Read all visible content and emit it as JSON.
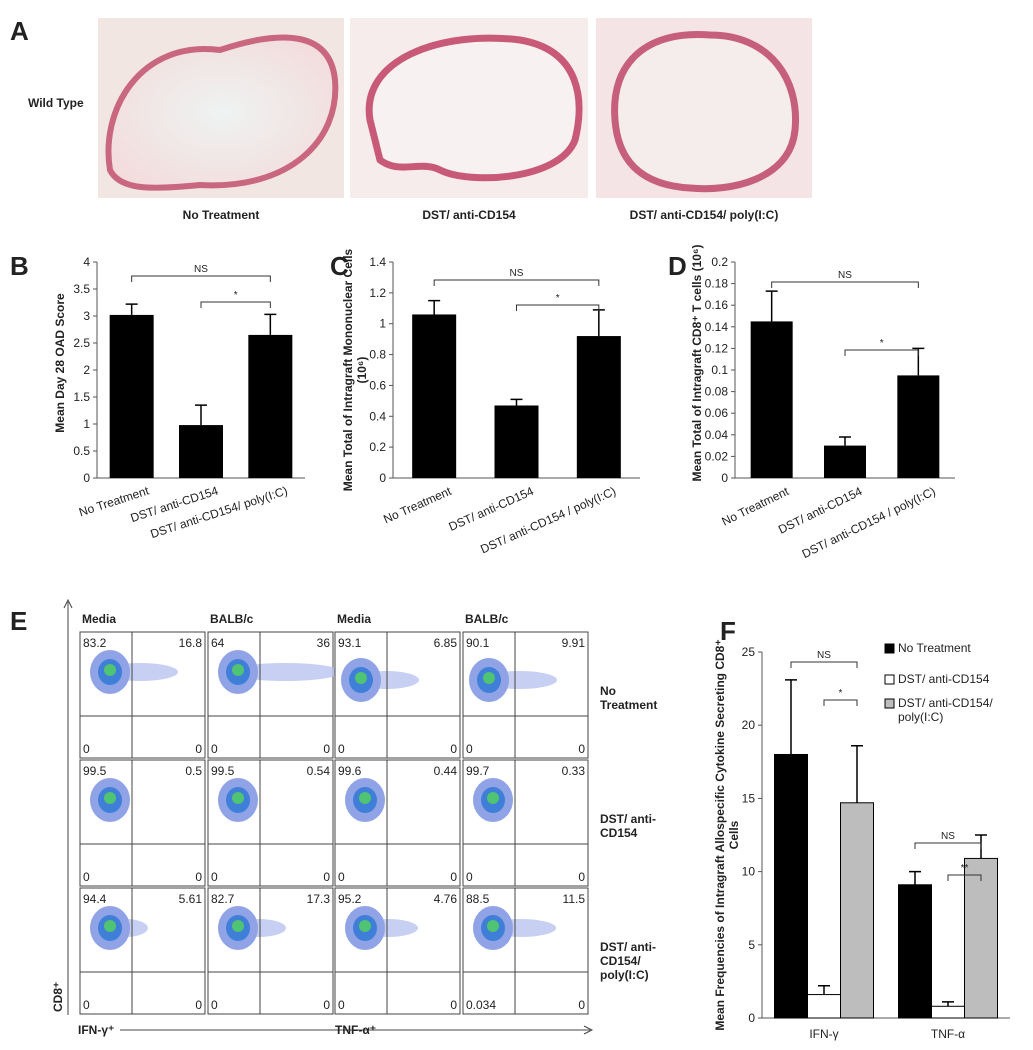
{
  "panel_a": {
    "label": "A",
    "row_label": "Wild Type",
    "captions": [
      "No Treatment",
      "DST/ anti-CD154",
      "DST/ anti-CD154/ poly(I:C)"
    ]
  },
  "chart_data": [
    {
      "type": "bar",
      "panel_label": "B",
      "y_label": "Mean Day 28 OAD Score",
      "categories": [
        "No Treatment",
        "DST/ anti-CD154",
        "DST/ anti-CD154/ poly(I:C)"
      ],
      "values": [
        3.02,
        0.98,
        2.65
      ],
      "errors": [
        0.2,
        0.37,
        0.38
      ],
      "color": "#000000",
      "ylim": [
        0,
        4
      ],
      "yticks": [
        0,
        0.5,
        1,
        1.5,
        2,
        2.5,
        3,
        3.5,
        4
      ],
      "annotations": [
        "NS",
        "*"
      ]
    },
    {
      "type": "bar",
      "panel_label": "C",
      "y_label": "Mean Total of Intragraft Mononuclear Cells (10⁶)",
      "categories": [
        "No Treatment",
        "DST/ anti-CD154",
        "DST/ anti-CD154 / poly(I:C)"
      ],
      "values": [
        1.06,
        0.47,
        0.92
      ],
      "errors": [
        0.09,
        0.04,
        0.17
      ],
      "color": "#000000",
      "ylim": [
        0,
        1.4
      ],
      "yticks": [
        0,
        0.2,
        0.4,
        0.6,
        0.8,
        1,
        1.2,
        1.4
      ],
      "annotations": [
        "NS",
        "*"
      ]
    },
    {
      "type": "bar",
      "panel_label": "D",
      "y_label": "Mean Total of Intragraft CD8⁺ T cells (10⁶)",
      "categories": [
        "No Treatment",
        "DST/ anti-CD154",
        "DST/ anti-CD154 / poly(I:C)"
      ],
      "values": [
        0.145,
        0.03,
        0.095
      ],
      "errors": [
        0.028,
        0.008,
        0.025
      ],
      "color": "#000000",
      "ylim": [
        0,
        0.2
      ],
      "yticks": [
        0,
        0.02,
        0.04,
        0.06,
        0.08,
        0.1,
        0.12,
        0.14,
        0.16,
        0.18,
        0.2
      ],
      "annotations": [
        "NS",
        "*"
      ]
    },
    {
      "type": "grouped_bar",
      "panel_label": "F",
      "y_label": "Mean Frequencies of Intragraft Allospecific Cytokine Secreting CD8⁺ Cells",
      "categories": [
        "IFN-γ",
        "TNF-α"
      ],
      "series": [
        {
          "name": "No Treatment",
          "color": "#000000",
          "values": [
            18,
            9.1
          ],
          "errors": [
            5.1,
            0.9
          ]
        },
        {
          "name": "DST/ anti-CD154",
          "color": "#ffffff",
          "values": [
            1.6,
            0.8
          ],
          "errors": [
            0.6,
            0.3
          ]
        },
        {
          "name": "DST/ anti-CD154/ poly(I:C)",
          "color": "#bdbdbd",
          "values": [
            14.7,
            10.9
          ],
          "errors": [
            3.9,
            1.6
          ]
        }
      ],
      "ylim": [
        0,
        25
      ],
      "yticks": [
        0,
        5,
        10,
        15,
        20,
        25
      ],
      "legend": "top-right",
      "annotations": [
        "NS",
        "*",
        "NS",
        "**"
      ]
    }
  ],
  "panel_e": {
    "label": "E",
    "column_headers": [
      "Media",
      "BALB/c",
      "Media",
      "BALB/c"
    ],
    "row_labels": [
      "No Treatment",
      "DST/ anti-CD154",
      "DST/ anti-CD154/ poly(I:C)"
    ],
    "quadrants": [
      [
        [
          83.2,
          16.8,
          0,
          0
        ],
        [
          64,
          36,
          0,
          0
        ],
        [
          93.1,
          6.85,
          0,
          0
        ],
        [
          90.1,
          9.91,
          0,
          0
        ]
      ],
      [
        [
          99.5,
          0.5,
          0,
          0
        ],
        [
          99.5,
          0.54,
          0,
          0
        ],
        [
          99.6,
          0.44,
          0,
          0
        ],
        [
          99.7,
          0.33,
          0,
          0
        ]
      ],
      [
        [
          94.4,
          5.61,
          0,
          0
        ],
        [
          82.7,
          17.3,
          0,
          0
        ],
        [
          95.2,
          4.76,
          0,
          0
        ],
        [
          88.5,
          11.5,
          0.034,
          0
        ]
      ]
    ],
    "y_axis_label": "CD8⁺",
    "x_axis_labels": [
      "IFN-γ⁺",
      "TNF-α⁺"
    ]
  }
}
